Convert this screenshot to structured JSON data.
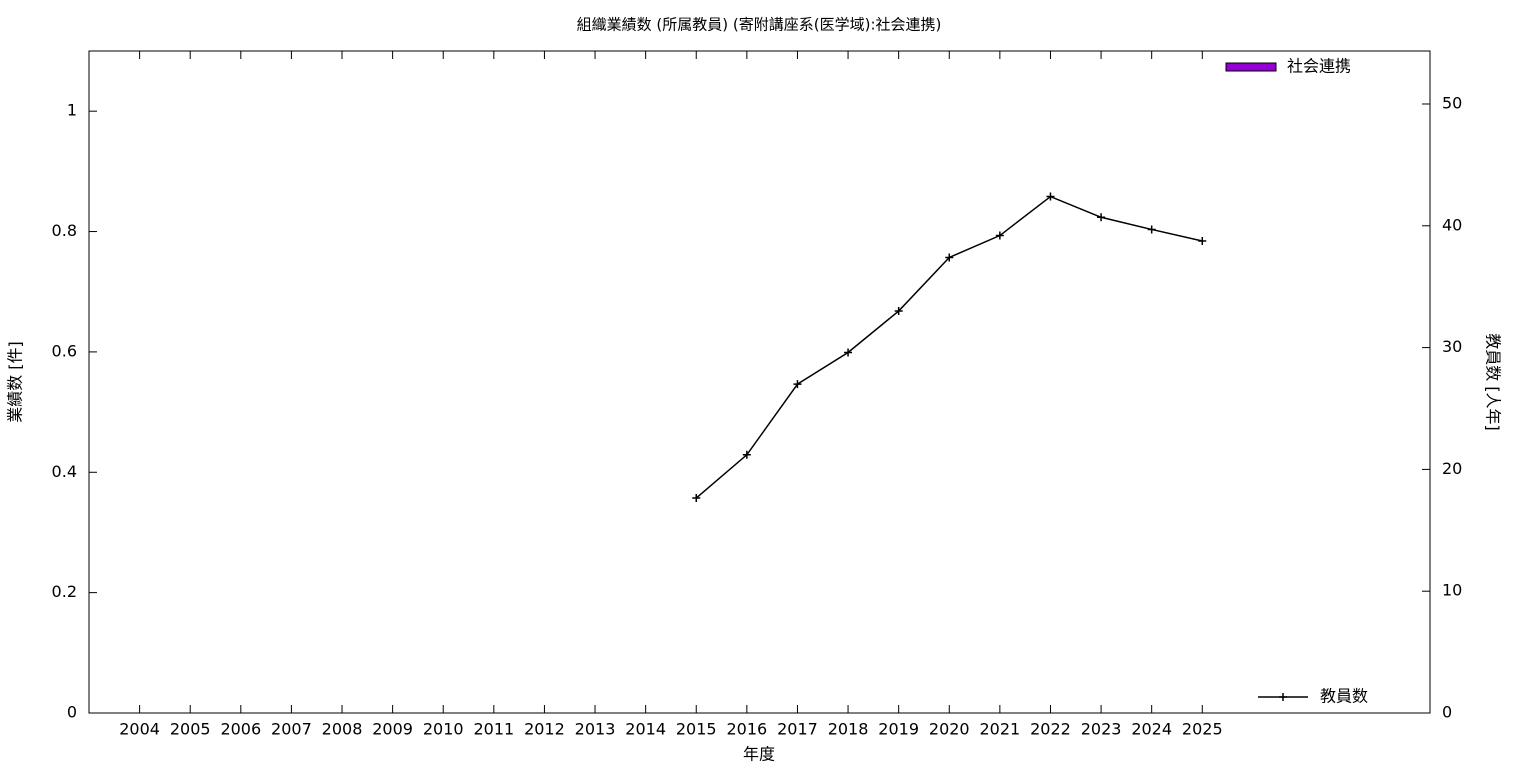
{
  "chart_data": {
    "type": "bar_line",
    "title": "組織業績数 (所属教員) (寄附講座系(医学域):社会連携)",
    "x_label": "年度",
    "y_label": "業績数 [件]",
    "y2_label": "教員数 [人年]",
    "categories": [
      "2004",
      "2005",
      "2006",
      "2007",
      "2008",
      "2009",
      "2010",
      "2011",
      "2012",
      "2013",
      "2014",
      "2015",
      "2016",
      "2017",
      "2018",
      "2019",
      "2020",
      "2021",
      "2022",
      "2023",
      "2024",
      "2025"
    ],
    "series": [
      {
        "name": "社会連携",
        "type": "bar",
        "color": "#9400d3",
        "values": [
          0,
          0,
          0,
          0,
          0,
          0,
          0,
          0,
          0,
          0,
          0,
          0,
          0,
          0,
          0,
          0,
          0,
          0,
          0,
          0,
          0,
          0
        ]
      },
      {
        "name": "教員数",
        "type": "line",
        "axis": "y2",
        "color": "#000000",
        "values": [
          null,
          null,
          null,
          null,
          null,
          null,
          null,
          null,
          null,
          null,
          null,
          17.65,
          21.2,
          27.0,
          29.6,
          33.0,
          37.4,
          39.2,
          42.4,
          40.7,
          39.7,
          38.75
        ]
      }
    ],
    "ylim": [
      0,
      1.1
    ],
    "yticks": [
      0,
      0.2,
      0.4,
      0.6,
      0.8,
      1
    ],
    "y2lim": [
      0,
      54.35
    ],
    "y2ticks": [
      0,
      10,
      20,
      30,
      40,
      50
    ],
    "legend": "top-right"
  }
}
